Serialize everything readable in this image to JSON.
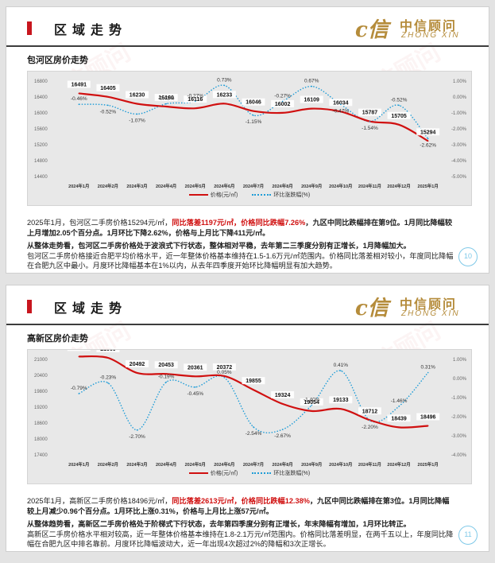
{
  "slides": [
    {
      "header_title": "区域走势",
      "logo_cn": "中信顾问",
      "logo_en": "ZHONG XIN",
      "logo_mark": "c信",
      "watermark": "中信顾问",
      "subtitle": "包河区房价走势",
      "legend": {
        "price": "价格(元/㎡)",
        "change": "环比涨跌幅(%)"
      },
      "text": {
        "p1_a": "2025年1月，包河区二手房价格15294元/㎡，",
        "p1_red": "同比落差1197元/㎡，价格同比跌幅7.26%",
        "p1_b": "，九区中同比跌幅排在第9位。1月同比降幅较上月增加2.05个百分点。1月环比下降2.62%，价格与上月比下降411元/㎡。",
        "p2_bold": "从整体走势看，包河区二手房价格处于波浪式下行状态，整体相对平稳，去年第二三季度分别有正增长，1月降幅加大。",
        "p2_rest": "包河区二手房价格接近合肥平均价格水平，近一年整体价格基本维持在1.5-1.6万元/㎡范围内。价格同比落差相对较小，年度同比降幅在合肥九区中最小。月度环比降幅基本在1%以内，从去年四季度开始环比降幅明显有加大趋势。"
      },
      "page_number": "10"
    },
    {
      "header_title": "区域走势",
      "logo_cn": "中信顾问",
      "logo_en": "ZHONG XIN",
      "logo_mark": "c信",
      "watermark": "中信顾问",
      "subtitle": "高新区房价走势",
      "legend": {
        "price": "价格(元/㎡)",
        "change": "环比涨跌幅(%)"
      },
      "text": {
        "p1_a": "2025年1月，高新区二手房价格18496元/㎡，",
        "p1_red": "同比落差2613元/㎡，价格同比跌幅12.38%",
        "p1_b": "，九区中同比跌幅排在第3位。1月同比降幅较上月减少0.96个百分点。1月环比上涨0.31%，价格与上月比上涨57元/㎡。",
        "p2_bold": "从整体趋势看，高新区二手房价格处于阶梯式下行状态，去年第四季度分别有正增长，年末降幅有增加，1月环比转正。",
        "p2_rest": "高新区二手房价格水平相对较高，近一年整体价格基本维持在1.8-2.1万元/㎡范围内。价格同比落差明显，在两千五以上，年度同比降幅在合肥九区中排名靠前。月度环比降幅波动大，近一年出现4次超过2%的降幅和3次正增长。"
      },
      "page_number": "11"
    }
  ],
  "chart_data": [
    {
      "type": "line",
      "categories": [
        "2024年1月",
        "2024年2月",
        "2024年3月",
        "2024年4月",
        "2024年5月",
        "2024年6月",
        "2024年7月",
        "2024年8月",
        "2024年9月",
        "2024年10月",
        "2024年11月",
        "2024年12月",
        "2025年1月"
      ],
      "series": [
        {
          "name": "价格(元/㎡)",
          "axis": "left",
          "color": "#d01010",
          "values": [
            16491,
            16405,
            16230,
            16160,
            16116,
            16233,
            16046,
            16002,
            16109,
            16034,
            15787,
            15705,
            15294
          ],
          "labels": [
            "16491",
            "16405",
            "16230",
            "16160",
            "16116",
            "16233",
            "16046",
            "16002",
            "16109",
            "16034",
            "15787",
            "15705",
            "15294"
          ]
        },
        {
          "name": "环比涨跌幅(%)",
          "axis": "right",
          "color": "#1e9cd7",
          "values": [
            -0.46,
            -0.52,
            -1.07,
            -0.43,
            -0.27,
            0.73,
            -1.15,
            -0.27,
            0.67,
            -0.47,
            -1.54,
            -0.52,
            -2.62
          ],
          "labels": [
            "-0.46%",
            "-0.52%",
            "-1.07%",
            "-0.43%",
            "-0.27%",
            "0.73%",
            "-1.15%",
            "-0.27%",
            "0.67%",
            "-0.47%",
            "-1.54%",
            "-0.52%",
            "-2.62%"
          ]
        }
      ],
      "y_left": {
        "range": [
          14400,
          16800
        ],
        "ticks": [
          "16800",
          "16400",
          "16000",
          "15600",
          "15200",
          "14800",
          "14400"
        ]
      },
      "y_right": {
        "range": [
          -5.0,
          1.0
        ],
        "ticks": [
          "1.00%",
          "0.00%",
          "-1.00%",
          "-2.00%",
          "-3.00%",
          "-4.00%",
          "-5.00%"
        ]
      },
      "grid": false,
      "legend_position": "bottom"
    },
    {
      "type": "line",
      "categories": [
        "2024年1月",
        "2024年2月",
        "2024年3月",
        "2024年4月",
        "2024年5月",
        "2024年6月",
        "2024年7月",
        "2024年8月",
        "2024年9月",
        "2024年10月",
        "2024年11月",
        "2024年12月",
        "2025年1月"
      ],
      "series": [
        {
          "name": "价格(元/㎡)",
          "axis": "left",
          "color": "#d01010",
          "values": [
            21109,
            21060,
            20492,
            20453,
            20361,
            20372,
            19855,
            19324,
            19054,
            19133,
            18712,
            18439,
            18496
          ],
          "labels": [
            "21109",
            "21060",
            "20492",
            "20453",
            "20361",
            "20372",
            "19855",
            "19324",
            "19054",
            "19133",
            "18712",
            "18439",
            "18496"
          ]
        },
        {
          "name": "环比涨跌幅(%)",
          "axis": "right",
          "color": "#1e9cd7",
          "values": [
            -0.79,
            -0.23,
            -2.7,
            -0.19,
            -0.45,
            0.05,
            -2.54,
            -2.67,
            -1.4,
            0.41,
            -2.2,
            -1.46,
            0.31
          ],
          "labels": [
            "-0.79%",
            "-0.23%",
            "-2.70%",
            "-0.19%",
            "-0.45%",
            "0.05%",
            "-2.54%",
            "-2.67%",
            "-1.40%",
            "0.41%",
            "-2.20%",
            "-1.46%",
            "0.31%"
          ]
        }
      ],
      "y_left": {
        "range": [
          17400,
          21000
        ],
        "ticks": [
          "21000",
          "20400",
          "19800",
          "19200",
          "18600",
          "18000",
          "17400"
        ]
      },
      "y_right": {
        "range": [
          -4.0,
          1.0
        ],
        "ticks": [
          "1.00%",
          "0.00%",
          "-1.00%",
          "-2.00%",
          "-3.00%",
          "-4.00%"
        ]
      },
      "grid": false,
      "legend_position": "bottom"
    }
  ]
}
